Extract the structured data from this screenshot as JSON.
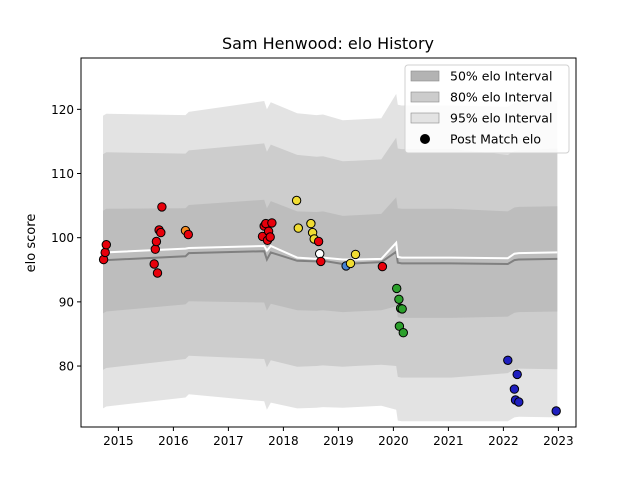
{
  "chart_data": {
    "type": "scatter",
    "title": "Sam Henwood: elo History",
    "xlabel": "",
    "ylabel": "elo score",
    "xlim": [
      2014.32,
      2023.32
    ],
    "ylim": [
      70.5,
      128.0
    ],
    "xticks": [
      2015,
      2016,
      2017,
      2018,
      2019,
      2020,
      2021,
      2022,
      2023
    ],
    "yticks": [
      80,
      90,
      100,
      110,
      120
    ],
    "grid": false,
    "legend_position": "top-right",
    "legend": [
      {
        "label": "50% elo Interval",
        "kind": "patch",
        "color": "#b3b3b3"
      },
      {
        "label": "80% elo Interval",
        "kind": "patch",
        "color": "#cccccc"
      },
      {
        "label": "95% elo Interval",
        "kind": "patch",
        "color": "#e3e3e3"
      },
      {
        "label": "Post Match elo",
        "kind": "marker",
        "color": "#000000"
      }
    ],
    "band_x": [
      2014.72,
      2014.78,
      2016.22,
      2016.28,
      2017.65,
      2017.7,
      2017.77,
      2018.25,
      2018.6,
      2018.72,
      2019.08,
      2019.3,
      2019.78,
      2020.05,
      2020.08,
      2020.15,
      2021.05,
      2022.08,
      2022.2,
      2022.28,
      2022.98
    ],
    "mean": [
      96.2,
      96.5,
      97.1,
      97.6,
      97.9,
      96.6,
      97.7,
      96.4,
      96.3,
      96.4,
      95.9,
      96.0,
      96.2,
      97.8,
      96.1,
      96.0,
      96.0,
      95.9,
      96.5,
      96.6,
      96.7
    ],
    "mean_line": [
      97.4,
      97.7,
      98.3,
      98.4,
      98.7,
      98.0,
      98.7,
      96.9,
      96.7,
      96.9,
      96.6,
      96.6,
      96.7,
      99.2,
      97.0,
      96.9,
      96.9,
      96.8,
      97.5,
      97.6,
      97.7
    ],
    "half_width_50": [
      8.0,
      8.0,
      7.5,
      7.5,
      8.0,
      8.0,
      8.0,
      7.7,
      7.7,
      7.7,
      7.5,
      7.5,
      7.5,
      8.5,
      8.5,
      8.5,
      8.5,
      8.2,
      8.2,
      8.2,
      8.2
    ],
    "half_width_80": [
      16.8,
      16.8,
      16.0,
      16.0,
      16.8,
      16.8,
      16.8,
      16.5,
      16.3,
      16.3,
      16.0,
      16.0,
      16.0,
      17.8,
      17.8,
      17.8,
      17.8,
      17.0,
      17.0,
      17.0,
      17.2
    ],
    "half_width_95": [
      22.8,
      22.8,
      22.0,
      22.0,
      23.4,
      23.4,
      23.4,
      23.0,
      22.8,
      22.8,
      22.4,
      22.4,
      22.4,
      24.6,
      24.6,
      24.6,
      24.6,
      24.5,
      24.5,
      24.5,
      24.7
    ],
    "points": [
      {
        "x": 2014.73,
        "y": 96.6,
        "color": "#e8000b"
      },
      {
        "x": 2014.76,
        "y": 97.7,
        "color": "#e8000b"
      },
      {
        "x": 2014.78,
        "y": 98.9,
        "color": "#e8000b"
      },
      {
        "x": 2015.65,
        "y": 95.9,
        "color": "#e8000b"
      },
      {
        "x": 2015.67,
        "y": 98.2,
        "color": "#e8000b"
      },
      {
        "x": 2015.69,
        "y": 99.4,
        "color": "#e8000b"
      },
      {
        "x": 2015.71,
        "y": 94.5,
        "color": "#e8000b"
      },
      {
        "x": 2015.74,
        "y": 101.2,
        "color": "#e8000b"
      },
      {
        "x": 2015.77,
        "y": 100.8,
        "color": "#e8000b"
      },
      {
        "x": 2015.79,
        "y": 104.8,
        "color": "#e8000b"
      },
      {
        "x": 2016.22,
        "y": 101.1,
        "color": "#f58a1f"
      },
      {
        "x": 2016.27,
        "y": 100.5,
        "color": "#e8000b"
      },
      {
        "x": 2017.62,
        "y": 100.2,
        "color": "#e8000b"
      },
      {
        "x": 2017.65,
        "y": 101.8,
        "color": "#e8000b"
      },
      {
        "x": 2017.68,
        "y": 102.2,
        "color": "#e8000b"
      },
      {
        "x": 2017.71,
        "y": 99.6,
        "color": "#e8000b"
      },
      {
        "x": 2017.73,
        "y": 101.0,
        "color": "#e8000b"
      },
      {
        "x": 2017.76,
        "y": 100.1,
        "color": "#e8000b"
      },
      {
        "x": 2017.79,
        "y": 102.3,
        "color": "#e8000b"
      },
      {
        "x": 2018.24,
        "y": 105.8,
        "color": "#f0dc32"
      },
      {
        "x": 2018.27,
        "y": 101.5,
        "color": "#f0dc32"
      },
      {
        "x": 2018.5,
        "y": 102.2,
        "color": "#f0dc32"
      },
      {
        "x": 2018.53,
        "y": 100.8,
        "color": "#f0dc32"
      },
      {
        "x": 2018.56,
        "y": 99.8,
        "color": "#f0dc32"
      },
      {
        "x": 2018.64,
        "y": 99.4,
        "color": "#e8000b"
      },
      {
        "x": 2018.66,
        "y": 97.5,
        "color": "#ffffff"
      },
      {
        "x": 2018.68,
        "y": 96.3,
        "color": "#e8000b"
      },
      {
        "x": 2019.14,
        "y": 95.6,
        "color": "#4682d2"
      },
      {
        "x": 2019.22,
        "y": 96.0,
        "color": "#f0dc32"
      },
      {
        "x": 2019.31,
        "y": 97.4,
        "color": "#f0dc32"
      },
      {
        "x": 2019.8,
        "y": 95.5,
        "color": "#e8000b"
      },
      {
        "x": 2020.06,
        "y": 92.1,
        "color": "#2ca02c"
      },
      {
        "x": 2020.1,
        "y": 90.4,
        "color": "#2ca02c"
      },
      {
        "x": 2020.13,
        "y": 89.0,
        "color": "#2ca02c"
      },
      {
        "x": 2020.16,
        "y": 88.9,
        "color": "#2ca02c"
      },
      {
        "x": 2020.11,
        "y": 86.2,
        "color": "#2ca02c"
      },
      {
        "x": 2020.18,
        "y": 85.2,
        "color": "#2ca02c"
      },
      {
        "x": 2022.08,
        "y": 80.9,
        "color": "#1f1fbf"
      },
      {
        "x": 2022.2,
        "y": 76.4,
        "color": "#1f1fbf"
      },
      {
        "x": 2022.25,
        "y": 78.7,
        "color": "#1f1fbf"
      },
      {
        "x": 2022.22,
        "y": 74.7,
        "color": "#1f1fbf"
      },
      {
        "x": 2022.28,
        "y": 74.4,
        "color": "#1f1fbf"
      },
      {
        "x": 2022.96,
        "y": 73.0,
        "color": "#1f1fbf"
      }
    ]
  }
}
